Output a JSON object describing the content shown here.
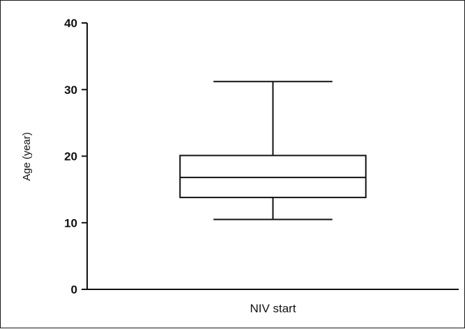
{
  "chart_data": {
    "type": "boxplot",
    "title": "",
    "xlabel": "",
    "ylabel": "Age (year)",
    "ylim": [
      0,
      40
    ],
    "yticks": [
      0,
      10,
      20,
      30,
      40
    ],
    "grid": false,
    "categories": [
      "NIV start"
    ],
    "boxes": [
      {
        "category": "NIV start",
        "min": 10.5,
        "q1": 13.8,
        "median": 16.8,
        "q3": 20.1,
        "max": 31.2
      }
    ],
    "colors": {
      "stroke": "#111111",
      "box_fill": "#ffffff"
    }
  }
}
